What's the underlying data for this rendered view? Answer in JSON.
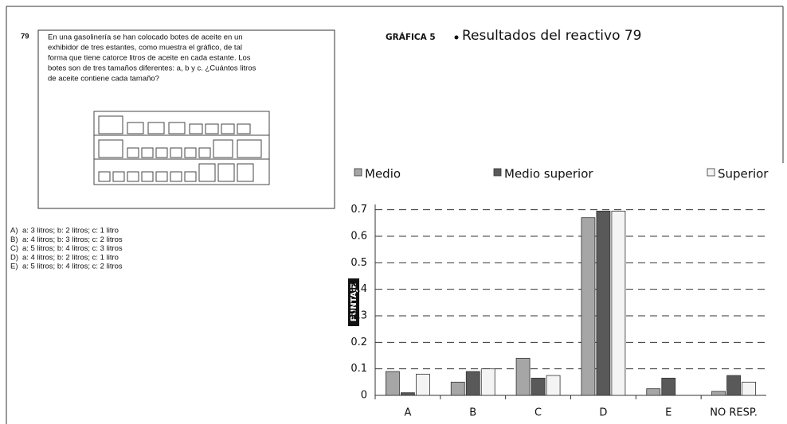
{
  "question": {
    "number": "79",
    "lines": [
      "En una gasolinería se han colocado botes de aceite en un",
      "exhibidor de tres estantes, como muestra el gráfico, de tal",
      "forma que tiene catorce litros de aceite en cada estante. Los",
      "botes son de tres tamaños diferentes: a, b y c. ¿Cuántos litros",
      "de aceite contiene cada tamaño?"
    ],
    "options": [
      {
        "letter": "A)",
        "text": "a: 3 litros; b: 2 litros; c: 1 litro"
      },
      {
        "letter": "B)",
        "text": "a: 4 litros; b: 3 litros; c: 2 litros"
      },
      {
        "letter": "C)",
        "text": "a: 5 litros; b: 4 litros; c: 3 litros"
      },
      {
        "letter": "D)",
        "text": "a: 4 litros; b: 2 litros; c: 1 litro"
      },
      {
        "letter": "E)",
        "text": "a: 5 litros; b: 4 litros; c: 2 litros"
      }
    ]
  },
  "chart_data": {
    "type": "bar",
    "figure_label": "GRÁFICA 5",
    "title": "Resultados del reactivo 79",
    "y_label": "PUNTAJE",
    "categories": [
      "A",
      "B",
      "C",
      "D",
      "E",
      "NO RESP."
    ],
    "series": [
      {
        "name": "Medio",
        "color": "#a6a6a6",
        "values": [
          0.09,
          0.05,
          0.14,
          0.67,
          0.025,
          0.015
        ]
      },
      {
        "name": "Medio  superior",
        "color": "#595959",
        "values": [
          0.01,
          0.09,
          0.065,
          0.695,
          0.065,
          0.075
        ]
      },
      {
        "name": "Superior",
        "color": "#f4f4f4",
        "values": [
          0.08,
          0.1,
          0.075,
          0.695,
          0,
          0.05
        ]
      }
    ],
    "ylim": [
      0,
      0.75
    ],
    "yticks": [
      0,
      0.1,
      0.2,
      0.3,
      0.4,
      0.5,
      0.6,
      0.7
    ],
    "grid": true,
    "legend": "top"
  }
}
